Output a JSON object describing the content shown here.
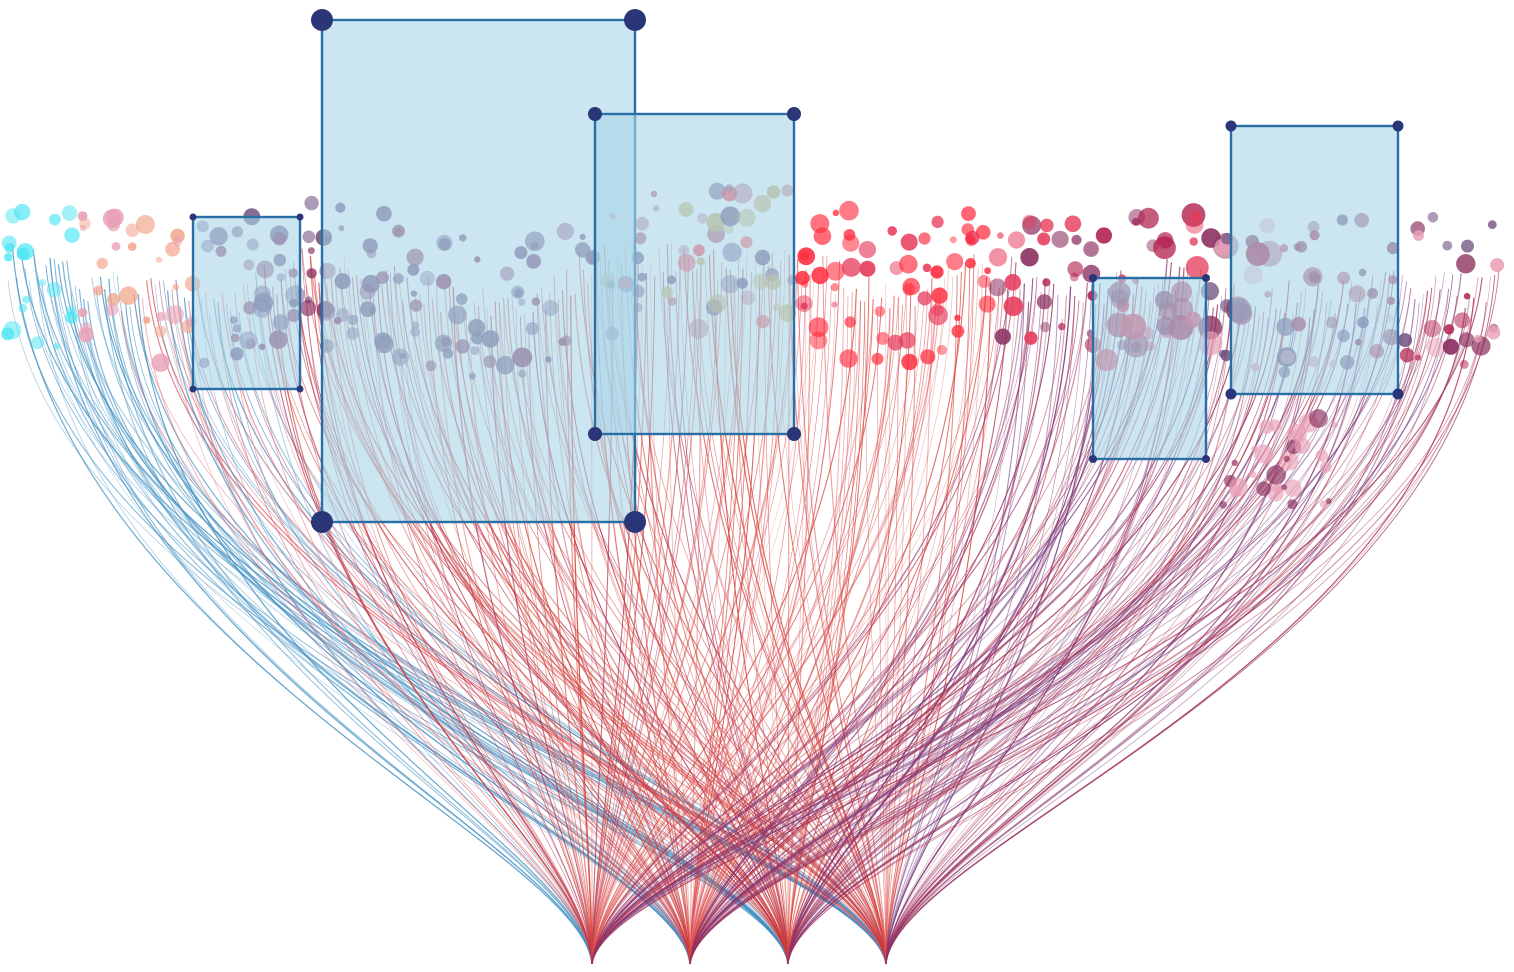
{
  "view": {
    "type": "bundled-flow-scatter",
    "link_colors": [
      "#d8453b",
      "#b0304f",
      "#7a3c7e",
      "#3f8fc2",
      "#e0606a"
    ],
    "node_colors": [
      "#ff2a3c",
      "#e63a5a",
      "#b01e4a",
      "#8a2e5e",
      "#6d4d7e",
      "#c2637a",
      "#e9a0b5",
      "#f2a48a",
      "#4ee6f2",
      "#c9a95a"
    ],
    "selection_fill": "#a9d6e8",
    "selection_stroke": "#2a6ea6",
    "handle_color": "#2a3677"
  },
  "sinks": [
    {
      "id": "sink-1",
      "color": "#b0304f"
    },
    {
      "id": "sink-2",
      "color": "#d8453b"
    },
    {
      "id": "sink-3",
      "color": "#7a3c7e"
    },
    {
      "id": "sink-4",
      "color": "#e0453b"
    }
  ],
  "selections": [
    {
      "id": "selection-1"
    },
    {
      "id": "selection-2"
    },
    {
      "id": "selection-3"
    },
    {
      "id": "selection-4"
    },
    {
      "id": "selection-5"
    }
  ]
}
